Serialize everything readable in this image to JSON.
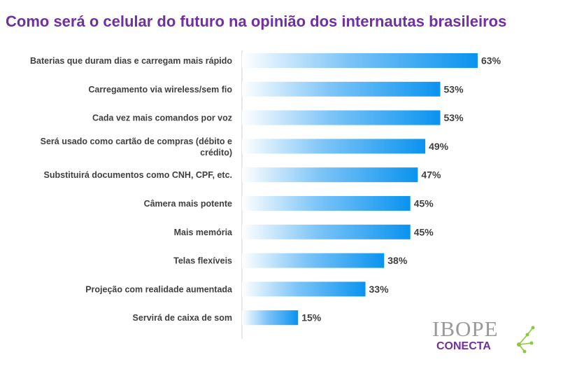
{
  "chart_data": {
    "type": "bar",
    "orientation": "horizontal",
    "title": "Como será o celular do futuro na opinião dos internautas brasileiros",
    "categories": [
      "Baterias que duram dias e carregam mais rápido",
      "Carregamento via wireless/sem fio",
      "Cada vez mais comandos por voz",
      "Será usado como cartão de compras (débito e crédito)",
      "Substituirá documentos como CNH, CPF, etc.",
      "Câmera mais potente",
      "Mais memória",
      "Telas flexíveis",
      "Projeção com realidade aumentada",
      "Servirá de caixa de som"
    ],
    "values": [
      63,
      53,
      53,
      49,
      47,
      45,
      45,
      38,
      33,
      15
    ],
    "value_labels": [
      "63%",
      "53%",
      "53%",
      "49%",
      "47%",
      "45%",
      "45%",
      "38%",
      "33%",
      "15%"
    ],
    "xlabel": "",
    "ylabel": "",
    "xlim": [
      0,
      63
    ],
    "grid": false,
    "legend": "none",
    "colors": {
      "bar_start": "#ffffff",
      "bar_end": "#0a93ef",
      "title": "#7030a0"
    }
  },
  "logo": {
    "brand": "IBOPE",
    "sub": "CONECTA"
  }
}
